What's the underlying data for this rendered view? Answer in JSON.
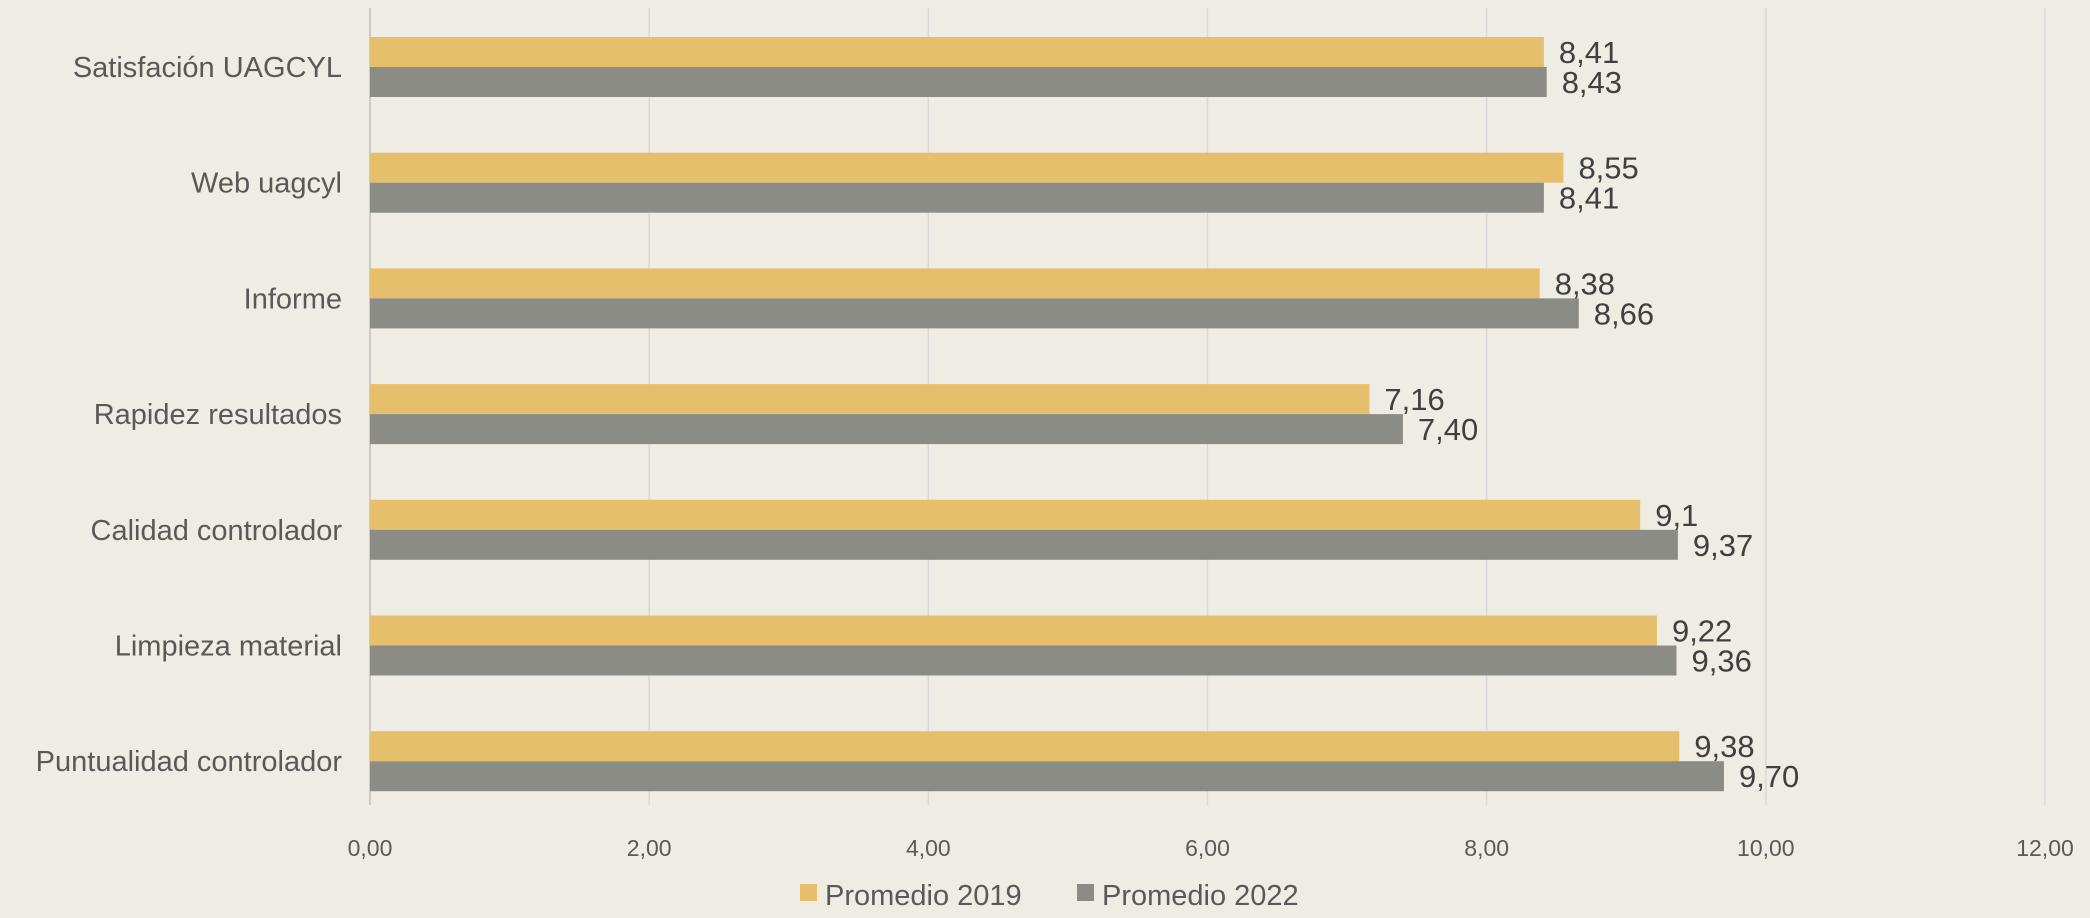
{
  "colors": {
    "background": "#efece4",
    "gridline": "#d9d9d9",
    "axis": "#bfbfbf"
  },
  "chart_data": {
    "type": "bar",
    "orientation": "horizontal",
    "categories": [
      "Satisfación UAGCYL",
      "Web uagcyl",
      "Informe",
      "Rapidez resultados",
      "Calidad controlador",
      "Limpieza material",
      "Puntualidad controlador"
    ],
    "series": [
      {
        "name": "Promedio 2019",
        "color": "#e5bf6b",
        "values": [
          8.41,
          8.55,
          8.38,
          7.16,
          9.1,
          9.22,
          9.38
        ],
        "labels": [
          "8,41",
          "8,55",
          "8,38",
          "7,16",
          "9,1",
          "9,22",
          "9,38"
        ]
      },
      {
        "name": "Promedio 2022",
        "color": "#8c8c86",
        "values": [
          8.43,
          8.41,
          8.66,
          7.4,
          9.37,
          9.36,
          9.7
        ],
        "labels": [
          "8,43",
          "8,41",
          "8,66",
          "7,40",
          "9,37",
          "9,36",
          "9,70"
        ]
      }
    ],
    "xlim": [
      0,
      12
    ],
    "xticks": [
      0,
      2,
      4,
      6,
      8,
      10,
      12
    ],
    "xtick_labels": [
      "0,00",
      "2,00",
      "4,00",
      "6,00",
      "8,00",
      "10,00",
      "12,00"
    ],
    "grid": true,
    "legend": "bottom",
    "title": "",
    "xlabel": "",
    "ylabel": ""
  }
}
